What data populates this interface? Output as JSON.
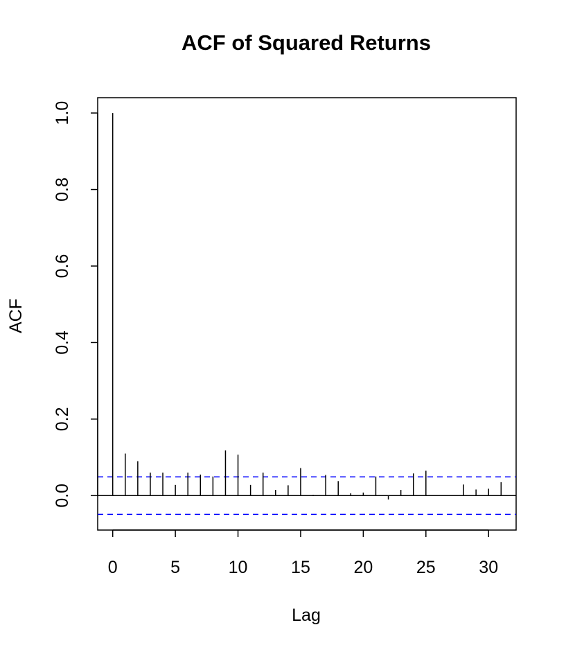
{
  "chart_data": {
    "type": "bar",
    "title": "ACF of Squared Returns",
    "xlabel": "Lag",
    "ylabel": "ACF",
    "xlim": [
      -1.2,
      32.2
    ],
    "ylim": [
      -0.09,
      1.04
    ],
    "x_ticks": [
      0,
      5,
      10,
      15,
      20,
      25,
      30
    ],
    "x_tick_labels": [
      "0",
      "5",
      "10",
      "15",
      "20",
      "25",
      "30"
    ],
    "y_ticks": [
      0.0,
      0.2,
      0.4,
      0.6,
      0.8,
      1.0
    ],
    "y_tick_labels": [
      "0.0",
      "0.2",
      "0.4",
      "0.6",
      "0.8",
      "1.0"
    ],
    "lags": [
      0,
      1,
      2,
      3,
      4,
      5,
      6,
      7,
      8,
      9,
      10,
      11,
      12,
      13,
      14,
      15,
      16,
      17,
      18,
      19,
      20,
      21,
      22,
      23,
      24,
      25,
      26,
      27,
      28,
      29,
      30,
      31
    ],
    "acf": [
      1.0,
      0.11,
      0.09,
      0.06,
      0.06,
      0.028,
      0.06,
      0.055,
      0.05,
      0.118,
      0.107,
      0.028,
      0.06,
      0.015,
      0.027,
      0.072,
      0.002,
      0.054,
      0.038,
      0.006,
      0.008,
      0.05,
      -0.01,
      0.015,
      0.058,
      0.065,
      0.001,
      0.001,
      0.029,
      0.016,
      0.018,
      0.035
    ],
    "confidence_bound": 0.049,
    "colors": {
      "bars": "#000000",
      "bounds": "#0000ff",
      "zero_line": "#000000"
    },
    "grid": false
  }
}
